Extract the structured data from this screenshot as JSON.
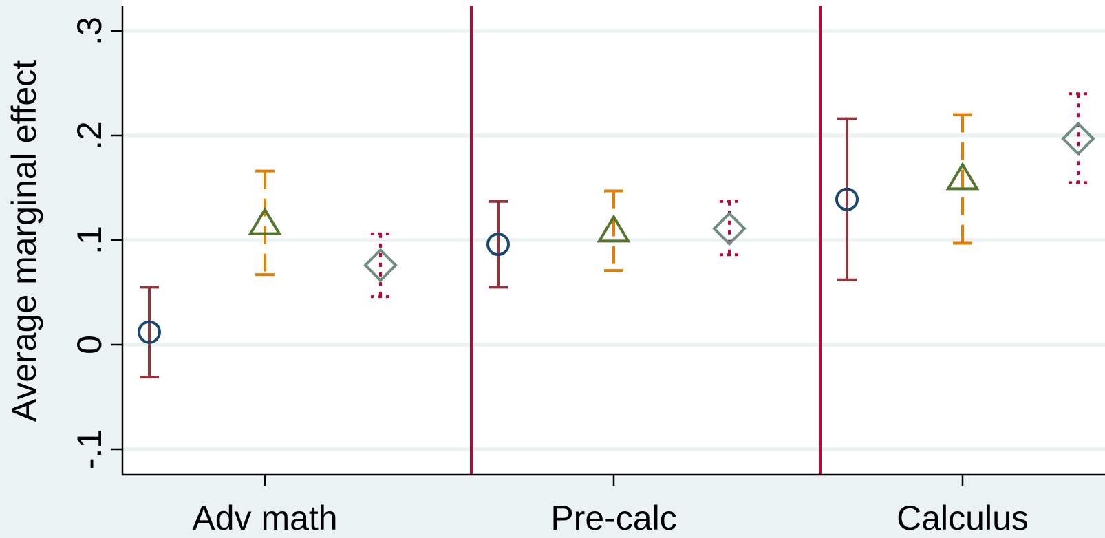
{
  "chart_data": {
    "type": "scatter",
    "xlabel": "",
    "ylabel": "Average marginal effect",
    "ylim": [
      -0.12,
      0.32
    ],
    "yticks": [
      {
        "value": -0.1,
        "label": "-.1"
      },
      {
        "value": 0,
        "label": "0"
      },
      {
        "value": 0.1,
        "label": ".1"
      },
      {
        "value": 0.2,
        "label": ".2"
      },
      {
        "value": 0.3,
        "label": ".3"
      }
    ],
    "grid": true,
    "categories": [
      "Adv math",
      "Pre-calc",
      "Calculus"
    ],
    "group_dividers": true,
    "series": [
      {
        "marker": "circle",
        "marker_color": "#1a476f",
        "ci_color": "#90353b",
        "ci_style": "solid",
        "points": [
          {
            "category": "Adv math",
            "estimate": 0.012,
            "ci_low": -0.031,
            "ci_high": 0.055
          },
          {
            "category": "Pre-calc",
            "estimate": 0.096,
            "ci_low": 0.055,
            "ci_high": 0.137
          },
          {
            "category": "Calculus",
            "estimate": 0.139,
            "ci_low": 0.062,
            "ci_high": 0.216
          }
        ]
      },
      {
        "marker": "triangle",
        "marker_color": "#55752f",
        "ci_color": "#e37e00",
        "ci_style": "dashed",
        "points": [
          {
            "category": "Adv math",
            "estimate": 0.116,
            "ci_low": 0.067,
            "ci_high": 0.166
          },
          {
            "category": "Pre-calc",
            "estimate": 0.109,
            "ci_low": 0.071,
            "ci_high": 0.147
          },
          {
            "category": "Calculus",
            "estimate": 0.159,
            "ci_low": 0.097,
            "ci_high": 0.22
          }
        ]
      },
      {
        "marker": "diamond",
        "marker_color": "#6e8e84",
        "ci_color": "#c10534",
        "ci_style": "dotted",
        "points": [
          {
            "category": "Adv math",
            "estimate": 0.076,
            "ci_low": 0.046,
            "ci_high": 0.106
          },
          {
            "category": "Pre-calc",
            "estimate": 0.111,
            "ci_low": 0.086,
            "ci_high": 0.137
          },
          {
            "category": "Calculus",
            "estimate": 0.197,
            "ci_low": 0.155,
            "ci_high": 0.24
          }
        ]
      }
    ],
    "colors": {
      "background": "#eaf2f3",
      "plot_background": "#ffffff",
      "grid": "#eaf2f3",
      "divider": "#c10534",
      "axis": "#000000"
    }
  }
}
